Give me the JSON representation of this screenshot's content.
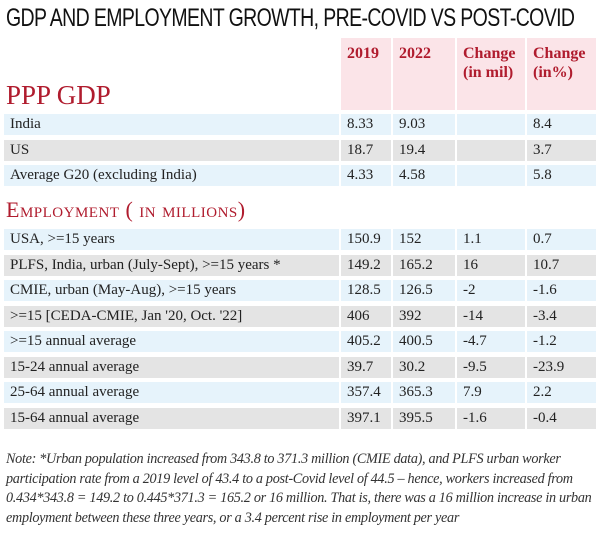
{
  "chart_data": {
    "type": "table",
    "title": "GDP AND EMPLOYMENT GROWTH, PRE-COVID VS POST-COVID",
    "columns": [
      "",
      "2019",
      "2022",
      "Change (in mil)",
      "Change (in%)"
    ],
    "header": {
      "col1": "2019",
      "col2": "2022",
      "col3_line1": "Change",
      "col3_line2": "(in mil)",
      "col4_line1": "Change",
      "col4_line2": "(in%)"
    },
    "sections": [
      {
        "title": "PPP GDP",
        "rows": [
          {
            "label": "India",
            "v2019": "8.33",
            "v2022": "9.03",
            "change_mil": "",
            "change_pct": "8.4"
          },
          {
            "label": "US",
            "v2019": "18.7",
            "v2022": "19.4",
            "change_mil": "",
            "change_pct": "3.7"
          },
          {
            "label": "Average G20 (excluding India)",
            "v2019": "4.33",
            "v2022": "4.58",
            "change_mil": "",
            "change_pct": "5.8"
          }
        ]
      },
      {
        "title": "Employment ( in millions)",
        "rows": [
          {
            "label": "USA, >=15 years",
            "v2019": "150.9",
            "v2022": "152",
            "change_mil": "1.1",
            "change_pct": "0.7"
          },
          {
            "label": "PLFS, India, urban (July-Sept), >=15 years *",
            "v2019": "149.2",
            "v2022": "165.2",
            "change_mil": "16",
            "change_pct": "10.7"
          },
          {
            "label": "CMIE, urban (May-Aug), >=15 years",
            "v2019": "128.5",
            "v2022": "126.5",
            "change_mil": "-2",
            "change_pct": "-1.6"
          },
          {
            "label": ">=15 [CEDA-CMIE, Jan '20, Oct. '22]",
            "v2019": "406",
            "v2022": "392",
            "change_mil": "-14",
            "change_pct": "-3.4"
          },
          {
            "label": ">=15 annual average",
            "v2019": "405.2",
            "v2022": "400.5",
            "change_mil": "-4.7",
            "change_pct": "-1.2"
          },
          {
            "label": "15-24 annual average",
            "v2019": "39.7",
            "v2022": "30.2",
            "change_mil": "-9.5",
            "change_pct": "-23.9"
          },
          {
            "label": "25-64 annual average",
            "v2019": "357.4",
            "v2022": "365.3",
            "change_mil": "7.9",
            "change_pct": "2.2"
          },
          {
            "label": "15-64 annual average",
            "v2019": "397.1",
            "v2022": "395.5",
            "change_mil": "-1.6",
            "change_pct": "-0.4"
          }
        ]
      }
    ],
    "note": "Note: *Urban population increased from 343.8 to 371.3 million (CMIE data), and PLFS urban worker participation rate from a 2019 level of 43.4 to a post-Covid level of 44.5 – hence, workers increased from 0.434*343.8 = 149.2 to 0.445*371.3 = 165.2 or 16 million. That is, there was a 16 million increase in urban employment between these three years, or a 3.4 percent rise in employment per year"
  },
  "colors": {
    "accent": "#b01c2e",
    "header_bg": "#fbe4e8",
    "row_blue": "#e6f3fb",
    "row_grey": "#e4e4e4"
  }
}
